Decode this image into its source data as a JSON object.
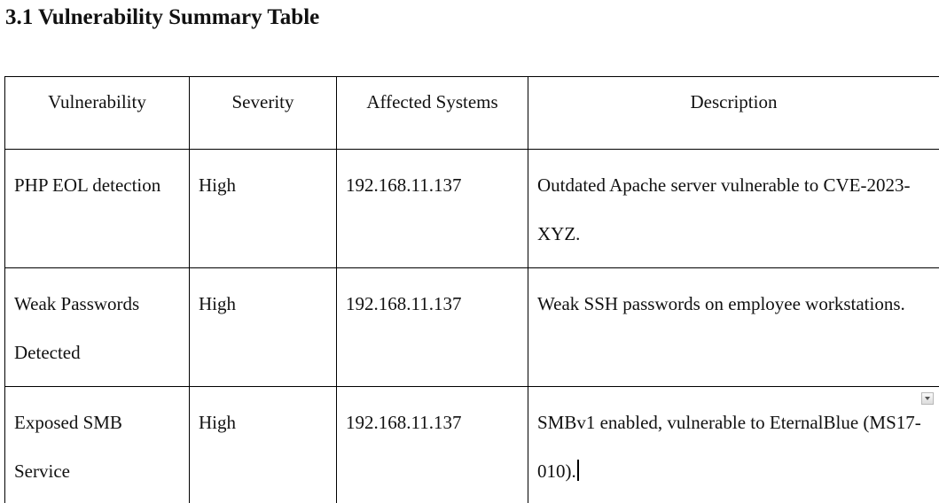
{
  "heading": "3.1 Vulnerability Summary Table",
  "table": {
    "headers": [
      "Vulnerability",
      "Severity",
      "Affected Systems",
      "Description"
    ],
    "rows": [
      {
        "vulnerability": "PHP EOL detection",
        "severity": "High",
        "affected_systems": "192.168.11.137",
        "description": "Outdated Apache server vulnerable to CVE-2023-XYZ."
      },
      {
        "vulnerability": "Weak Passwords Detected",
        "severity": "High",
        "affected_systems": "192.168.11.137",
        "description": "Weak SSH passwords on employee workstations."
      },
      {
        "vulnerability": "Exposed SMB Service",
        "severity": "High",
        "affected_systems": "192.168.11.137",
        "description": "SMBv1 enabled, vulnerable to EternalBlue (MS17-010)."
      }
    ]
  },
  "icons": {
    "dropdown": "chevron-down-icon"
  }
}
